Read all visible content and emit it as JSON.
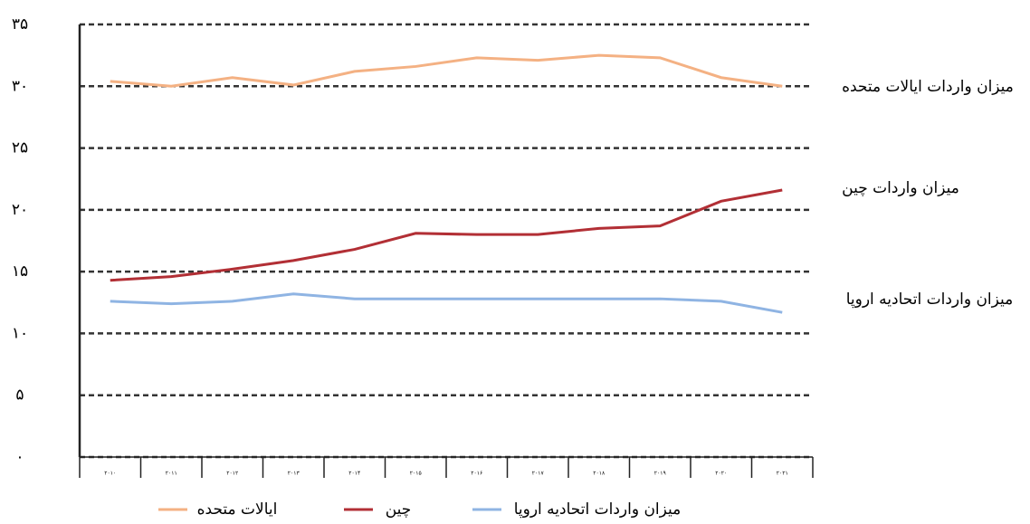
{
  "chart_data": {
    "type": "line",
    "categories": [
      "۲۰۱۰",
      "۲۰۱۱",
      "۲۰۱۲",
      "۲۰۱۳",
      "۲۰۱۴",
      "۲۰۱۵",
      "۲۰۱۶",
      "۲۰۱۷",
      "۲۰۱۸",
      "۲۰۱۹",
      "۲۰۲۰",
      "۲۰۲۱"
    ],
    "series": [
      {
        "name": "ایالات متحده",
        "color": "#f4b183",
        "values": [
          30.4,
          30.0,
          30.7,
          30.1,
          31.2,
          31.6,
          32.3,
          32.1,
          32.5,
          32.3,
          30.7,
          30.0
        ]
      },
      {
        "name": "چین",
        "color": "#b22f35",
        "values": [
          14.3,
          14.6,
          15.2,
          15.9,
          16.8,
          18.1,
          18.0,
          18.0,
          18.5,
          18.7,
          20.7,
          21.6
        ]
      },
      {
        "name": "میزان واردات اتحادیه اروپا",
        "color": "#8fb4e3",
        "values": [
          12.6,
          12.4,
          12.6,
          13.2,
          12.8,
          12.8,
          12.8,
          12.8,
          12.8,
          12.8,
          12.6,
          11.7
        ]
      }
    ],
    "annotations": [
      "میزان واردات ایالات متحده",
      "میزان واردات چین",
      "میزان واردات اتحادیه اروپا"
    ],
    "ylim": [
      0,
      35
    ],
    "yticks": [
      {
        "value": 0,
        "label": "۰"
      },
      {
        "value": 5,
        "label": "۵"
      },
      {
        "value": 10,
        "label": "۱۰"
      },
      {
        "value": 15,
        "label": "۱۵"
      },
      {
        "value": 20,
        "label": "۲۰"
      },
      {
        "value": 25,
        "label": "۲۵"
      },
      {
        "value": 30,
        "label": "۳۰"
      },
      {
        "value": 35,
        "label": "۳۵"
      }
    ],
    "grid": true
  }
}
